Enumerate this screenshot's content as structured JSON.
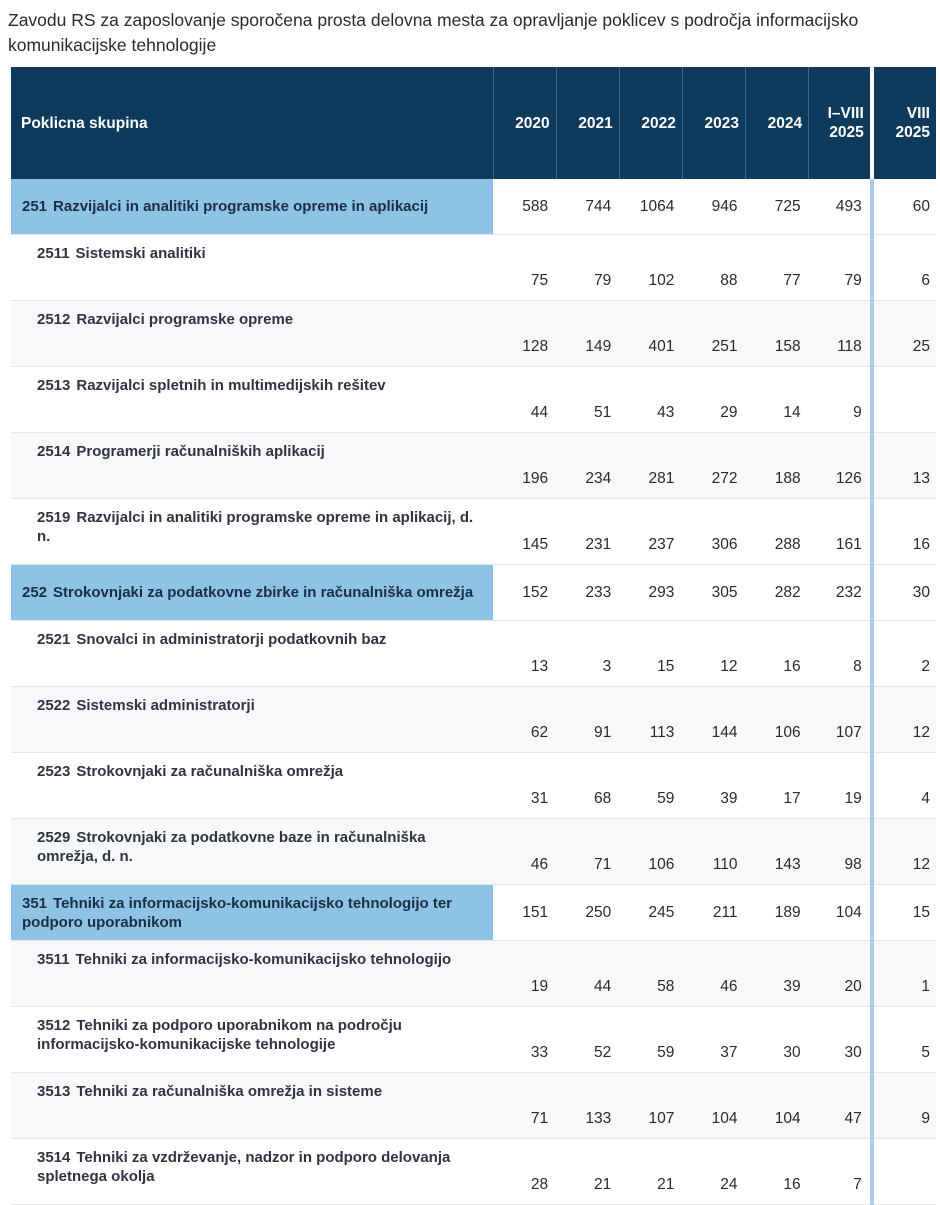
{
  "title": "Zavodu RS za zaposlovanje sporočena prosta delovna mesta za opravljanje poklicev s področja informacijsko komunikacijske tehnologije",
  "header": {
    "name": "Poklicna skupina",
    "cols": [
      "2020",
      "2021",
      "2022",
      "2023",
      "2024",
      "I–VIII\n2025",
      "VIII\n2025"
    ]
  },
  "rows": [
    {
      "type": "group",
      "code": "251",
      "label": "Razvijalci in analitiki programske opreme in aplikacij",
      "values": [
        "588",
        "744",
        "1064",
        "946",
        "725",
        "493",
        "60"
      ]
    },
    {
      "type": "sub",
      "code": "2511",
      "label": "Sistemski analitiki",
      "values": [
        "75",
        "79",
        "102",
        "88",
        "77",
        "79",
        "6"
      ]
    },
    {
      "type": "sub",
      "code": "2512",
      "label": "Razvijalci programske opreme",
      "values": [
        "128",
        "149",
        "401",
        "251",
        "158",
        "118",
        "25"
      ]
    },
    {
      "type": "sub",
      "code": "2513",
      "label": "Razvijalci spletnih in multimedijskih rešitev",
      "values": [
        "44",
        "51",
        "43",
        "29",
        "14",
        "9",
        ""
      ]
    },
    {
      "type": "sub",
      "code": "2514",
      "label": "Programerji računalniških aplikacij",
      "values": [
        "196",
        "234",
        "281",
        "272",
        "188",
        "126",
        "13"
      ]
    },
    {
      "type": "sub",
      "code": "2519",
      "label": "Razvijalci in analitiki programske opreme in aplikacij, d. n.",
      "values": [
        "145",
        "231",
        "237",
        "306",
        "288",
        "161",
        "16"
      ]
    },
    {
      "type": "group",
      "code": "252",
      "label": "Strokovnjaki za podatkovne zbirke in računalniška omrežja",
      "values": [
        "152",
        "233",
        "293",
        "305",
        "282",
        "232",
        "30"
      ]
    },
    {
      "type": "sub",
      "code": "2521",
      "label": "Snovalci in administratorji podatkovnih baz",
      "values": [
        "13",
        "3",
        "15",
        "12",
        "16",
        "8",
        "2"
      ]
    },
    {
      "type": "sub",
      "code": "2522",
      "label": "Sistemski administratorji",
      "values": [
        "62",
        "91",
        "113",
        "144",
        "106",
        "107",
        "12"
      ]
    },
    {
      "type": "sub",
      "code": "2523",
      "label": "Strokovnjaki za računalniška omrežja",
      "values": [
        "31",
        "68",
        "59",
        "39",
        "17",
        "19",
        "4"
      ]
    },
    {
      "type": "sub",
      "code": "2529",
      "label": "Strokovnjaki za podatkovne baze in računalniška omrežja, d. n.",
      "values": [
        "46",
        "71",
        "106",
        "110",
        "143",
        "98",
        "12"
      ]
    },
    {
      "type": "group",
      "code": "351",
      "label": "Tehniki za informacijsko-komunikacijsko tehnologijo ter podporo uporabnikom",
      "values": [
        "151",
        "250",
        "245",
        "211",
        "189",
        "104",
        "15"
      ]
    },
    {
      "type": "sub",
      "code": "3511",
      "label": "Tehniki za informacijsko-komunikacijsko tehnologijo",
      "values": [
        "19",
        "44",
        "58",
        "46",
        "39",
        "20",
        "1"
      ]
    },
    {
      "type": "sub",
      "code": "3512",
      "label": "Tehniki za podporo uporabnikom na področju informacijsko-komunikacijske tehnologije",
      "values": [
        "33",
        "52",
        "59",
        "37",
        "30",
        "30",
        "5"
      ]
    },
    {
      "type": "sub",
      "code": "3513",
      "label": "Tehniki za računalniška omrežja in sisteme",
      "values": [
        "71",
        "133",
        "107",
        "104",
        "104",
        "47",
        "9"
      ]
    },
    {
      "type": "sub",
      "code": "3514",
      "label": "Tehniki za vzdrževanje, nadzor in podporo delovanja spletnega okolja",
      "values": [
        "28",
        "21",
        "21",
        "24",
        "16",
        "7",
        ""
      ]
    }
  ]
}
